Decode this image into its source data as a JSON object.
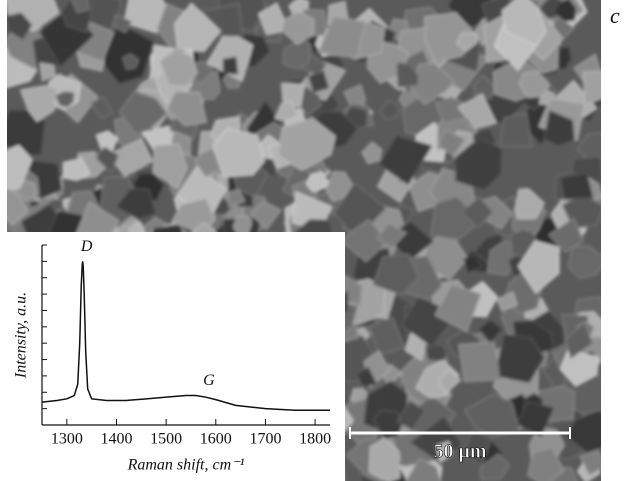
{
  "panel_label": "c",
  "scale_bar": "50 μm",
  "chart_data": {
    "type": "line",
    "x_label": "Raman shift, cm⁻¹",
    "y_label": "Intensity, a.u.",
    "annotations": [
      {
        "text": "D",
        "x": 1332
      },
      {
        "text": "G",
        "x": 1550
      }
    ],
    "x": [
      1250,
      1280,
      1300,
      1315,
      1322,
      1326,
      1329,
      1331,
      1332,
      1333,
      1335,
      1338,
      1342,
      1350,
      1380,
      1420,
      1460,
      1500,
      1540,
      1560,
      1580,
      1600,
      1640,
      1700,
      1760,
      1830
    ],
    "series": [
      {
        "color": "#111111",
        "values": [
          0.14,
          0.15,
          0.16,
          0.18,
          0.25,
          0.5,
          0.85,
          0.98,
          1.0,
          0.97,
          0.8,
          0.45,
          0.22,
          0.16,
          0.15,
          0.15,
          0.16,
          0.17,
          0.18,
          0.18,
          0.17,
          0.155,
          0.12,
          0.1,
          0.09,
          0.09
        ]
      }
    ],
    "xlim": [
      1250,
      1830
    ],
    "ylim": [
      0,
      1.1
    ],
    "xticks": [
      1300,
      1400,
      1500,
      1600,
      1700,
      1800
    ],
    "yticks": [
      0.1,
      0.2,
      0.3,
      0.4,
      0.5,
      0.6,
      0.7,
      0.8,
      0.9,
      1.0,
      1.1
    ]
  }
}
